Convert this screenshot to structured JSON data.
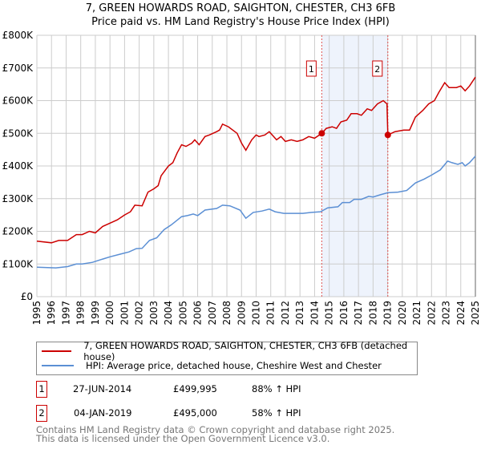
{
  "title": "7, GREEN HOWARDS ROAD, SAIGHTON, CHESTER, CH3 6FB",
  "subtitle": "Price paid vs. HM Land Registry's House Price Index (HPI)",
  "chart_data": {
    "type": "line",
    "title": "7, GREEN HOWARDS ROAD, SAIGHTON, CHESTER, CH3 6FB",
    "subtitle": "Price paid vs. HM Land Registry's House Price Index (HPI)",
    "xlim": [
      1995,
      2025
    ],
    "ylim": [
      0,
      800000
    ],
    "x_ticks": [
      "1995",
      "1996",
      "1997",
      "1998",
      "1999",
      "2000",
      "2001",
      "2002",
      "2003",
      "2004",
      "2005",
      "2006",
      "2007",
      "2008",
      "2009",
      "2010",
      "2011",
      "2012",
      "2013",
      "2014",
      "2015",
      "2016",
      "2017",
      "2018",
      "2019",
      "2020",
      "2021",
      "2022",
      "2023",
      "2024",
      "2025"
    ],
    "y_ticks": [
      {
        "v": 0,
        "label": "£0"
      },
      {
        "v": 100000,
        "label": "£100K"
      },
      {
        "v": 200000,
        "label": "£200K"
      },
      {
        "v": 300000,
        "label": "£300K"
      },
      {
        "v": 400000,
        "label": "£400K"
      },
      {
        "v": 500000,
        "label": "£500K"
      },
      {
        "v": 600000,
        "label": "£600K"
      },
      {
        "v": 700000,
        "label": "£700K"
      },
      {
        "v": 800000,
        "label": "£800K"
      }
    ],
    "grid": true,
    "shaded_range": [
      2014.49,
      2019.01
    ],
    "series": [
      {
        "name": "7, GREEN HOWARDS ROAD, SAIGHTON, CHESTER, CH3 6FB (detached house)",
        "color": "#cc0000",
        "points": [
          [
            1995,
            170
          ],
          [
            1996,
            165
          ],
          [
            1996.5,
            172
          ],
          [
            1997.1,
            172
          ],
          [
            1997.7,
            190
          ],
          [
            1998.1,
            190
          ],
          [
            1998.6,
            200
          ],
          [
            1999,
            195
          ],
          [
            1999.5,
            215
          ],
          [
            2000,
            225
          ],
          [
            2000.5,
            235
          ],
          [
            2001,
            250
          ],
          [
            2001.4,
            260
          ],
          [
            2001.7,
            280
          ],
          [
            2002.2,
            278
          ],
          [
            2002.6,
            320
          ],
          [
            2003,
            330
          ],
          [
            2003.3,
            340
          ],
          [
            2003.5,
            370
          ],
          [
            2004,
            400
          ],
          [
            2004.3,
            410
          ],
          [
            2004.6,
            440
          ],
          [
            2004.9,
            465
          ],
          [
            2005.2,
            460
          ],
          [
            2005.6,
            470
          ],
          [
            2005.8,
            480
          ],
          [
            2006.1,
            465
          ],
          [
            2006.5,
            490
          ],
          [
            2006.8,
            495
          ],
          [
            2007.3,
            505
          ],
          [
            2007.5,
            510
          ],
          [
            2007.7,
            528
          ],
          [
            2008.1,
            520
          ],
          [
            2008.7,
            500
          ],
          [
            2009,
            470
          ],
          [
            2009.3,
            448
          ],
          [
            2009.7,
            480
          ],
          [
            2010,
            495
          ],
          [
            2010.2,
            490
          ],
          [
            2010.6,
            495
          ],
          [
            2010.9,
            505
          ],
          [
            2011.4,
            480
          ],
          [
            2011.7,
            490
          ],
          [
            2012,
            475
          ],
          [
            2012.4,
            480
          ],
          [
            2012.8,
            475
          ],
          [
            2013.2,
            480
          ],
          [
            2013.6,
            490
          ],
          [
            2014,
            485
          ],
          [
            2014.49,
            499.995
          ],
          [
            2014.8,
            515
          ],
          [
            2015.2,
            520
          ],
          [
            2015.5,
            515
          ],
          [
            2015.8,
            535
          ],
          [
            2016.2,
            540
          ],
          [
            2016.5,
            560
          ],
          [
            2016.9,
            560
          ],
          [
            2017.2,
            555
          ],
          [
            2017.6,
            575
          ],
          [
            2017.9,
            570
          ],
          [
            2018.3,
            590
          ],
          [
            2018.7,
            600
          ],
          [
            2018.95,
            590
          ],
          [
            2019.01,
            495
          ],
          [
            2019.5,
            505
          ],
          [
            2020.1,
            510
          ],
          [
            2020.5,
            510
          ],
          [
            2020.9,
            550
          ],
          [
            2021.4,
            570
          ],
          [
            2021.8,
            590
          ],
          [
            2022.2,
            600
          ],
          [
            2022.5,
            625
          ],
          [
            2022.9,
            655
          ],
          [
            2023.2,
            640
          ],
          [
            2023.7,
            640
          ],
          [
            2024,
            645
          ],
          [
            2024.3,
            630
          ],
          [
            2024.6,
            645
          ],
          [
            2025,
            672
          ]
        ]
      },
      {
        "name": "HPI: Average price, detached house, Cheshire West and Chester",
        "color": "#5b8fd4",
        "points": [
          [
            1995,
            90
          ],
          [
            1996.3,
            88
          ],
          [
            1997.1,
            92
          ],
          [
            1997.7,
            100
          ],
          [
            1998.1,
            100
          ],
          [
            1998.8,
            105
          ],
          [
            1999.5,
            115
          ],
          [
            2000,
            122
          ],
          [
            2000.7,
            130
          ],
          [
            2001.3,
            137
          ],
          [
            2001.8,
            147
          ],
          [
            2002.2,
            148
          ],
          [
            2002.7,
            172
          ],
          [
            2003.2,
            180
          ],
          [
            2003.7,
            205
          ],
          [
            2004.2,
            220
          ],
          [
            2004.9,
            245
          ],
          [
            2005.3,
            248
          ],
          [
            2005.7,
            253
          ],
          [
            2006,
            248
          ],
          [
            2006.5,
            265
          ],
          [
            2007.3,
            270
          ],
          [
            2007.7,
            280
          ],
          [
            2008.2,
            278
          ],
          [
            2008.9,
            265
          ],
          [
            2009.3,
            240
          ],
          [
            2009.8,
            258
          ],
          [
            2010.4,
            262
          ],
          [
            2010.9,
            268
          ],
          [
            2011.3,
            260
          ],
          [
            2011.9,
            255
          ],
          [
            2012.5,
            255
          ],
          [
            2013.2,
            255
          ],
          [
            2013.8,
            258
          ],
          [
            2014.4,
            260
          ],
          [
            2014.9,
            272
          ],
          [
            2015.6,
            275
          ],
          [
            2015.9,
            288
          ],
          [
            2016.4,
            288
          ],
          [
            2016.7,
            298
          ],
          [
            2017.2,
            298
          ],
          [
            2017.7,
            307
          ],
          [
            2018,
            305
          ],
          [
            2018.5,
            312
          ],
          [
            2019,
            318
          ],
          [
            2019.7,
            320
          ],
          [
            2020.3,
            325
          ],
          [
            2020.9,
            348
          ],
          [
            2021.5,
            360
          ],
          [
            2022,
            372
          ],
          [
            2022.6,
            388
          ],
          [
            2023.1,
            415
          ],
          [
            2023.4,
            410
          ],
          [
            2023.8,
            405
          ],
          [
            2024.1,
            410
          ],
          [
            2024.3,
            400
          ],
          [
            2024.6,
            410
          ],
          [
            2025,
            430
          ]
        ]
      }
    ],
    "y_unit_multiplier": 1000,
    "annotations": [
      {
        "label": "1",
        "x": 2014.49,
        "y": 499995
      },
      {
        "label": "2",
        "x": 2019.01,
        "y": 495000
      }
    ]
  },
  "legend": {
    "items": [
      {
        "label": "7, GREEN HOWARDS ROAD, SAIGHTON, CHESTER, CH3 6FB (detached house)",
        "color": "#cc0000"
      },
      {
        "label": "HPI: Average price, detached house, Cheshire West and Chester",
        "color": "#5b8fd4"
      }
    ]
  },
  "transactions": [
    {
      "num": "1",
      "date": "27-JUN-2014",
      "price": "£499,995",
      "hpi": "88% ↑ HPI"
    },
    {
      "num": "2",
      "date": "04-JAN-2019",
      "price": "£495,000",
      "hpi": "58% ↑ HPI"
    }
  ],
  "footer": {
    "line1": "Contains HM Land Registry data © Crown copyright and database right 2025.",
    "line2": "This data is licensed under the Open Government Licence v3.0."
  }
}
